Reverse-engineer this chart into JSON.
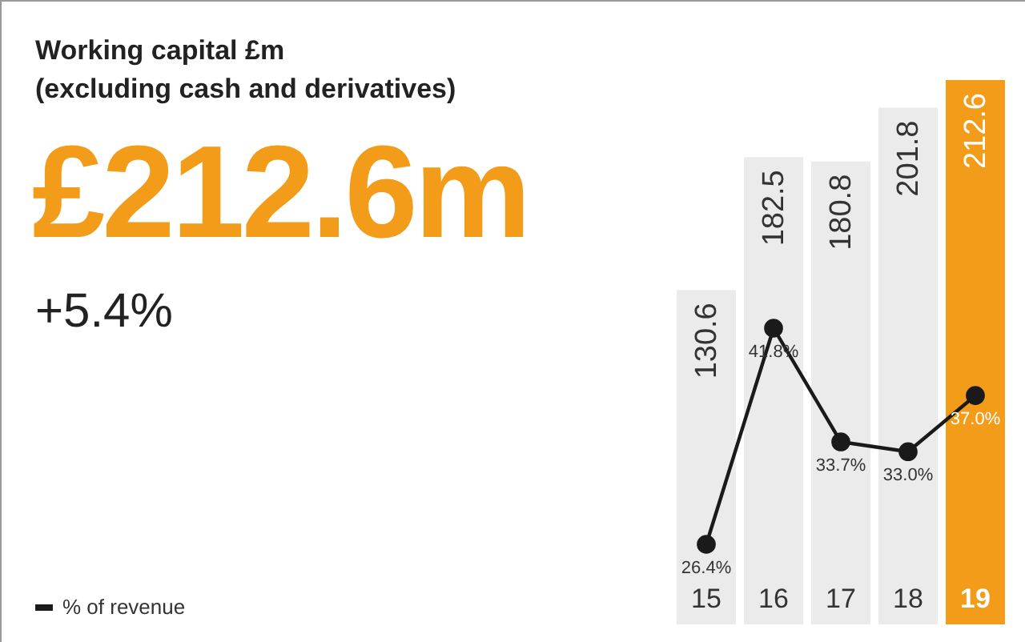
{
  "chart_data": {
    "type": "bar",
    "title": "Working capital £m",
    "subtitle": "(excluding cash and derivatives)",
    "annotations": [
      "£212.6m",
      "+5.4%"
    ],
    "categories": [
      "15",
      "16",
      "17",
      "18",
      "19"
    ],
    "series": [
      {
        "type": "bar",
        "colors": [
          "#ebebeb",
          "#ebebeb",
          "#ebebeb",
          "#ebebeb",
          "#f39c1a"
        ],
        "values": [
          130.6,
          182.5,
          180.8,
          201.8,
          212.6
        ],
        "value_labels": [
          "130.6",
          "182.5",
          "180.8",
          "201.8",
          "212.6"
        ]
      },
      {
        "type": "line",
        "name": "% of revenue",
        "color": "#1a1a1a",
        "axis": "y2",
        "values": [
          26.4,
          41.8,
          33.7,
          33.0,
          37.0
        ],
        "value_labels": [
          "26.4%",
          "41.8%",
          "33.7%",
          "33.0%",
          "37.0%"
        ]
      }
    ],
    "tick_labels": "x",
    "marker": "circle",
    "line_style": "solid",
    "legend": "bottom left"
  }
}
